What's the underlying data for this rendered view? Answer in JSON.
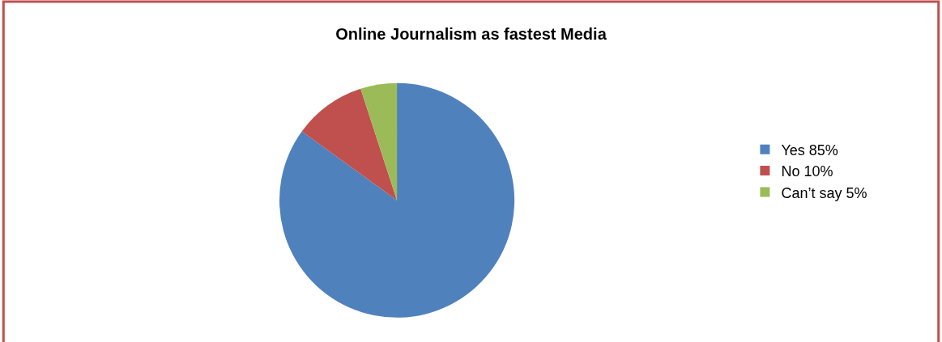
{
  "chart_data": {
    "type": "pie",
    "title": "Online Journalism as fastest Media",
    "categories": [
      "Yes 85%",
      "No 10%",
      "Can’t say 5%"
    ],
    "values": [
      85,
      10,
      5
    ],
    "colors": [
      "#4f81bd",
      "#c0504d",
      "#9bbb59"
    ],
    "legend": "right"
  }
}
